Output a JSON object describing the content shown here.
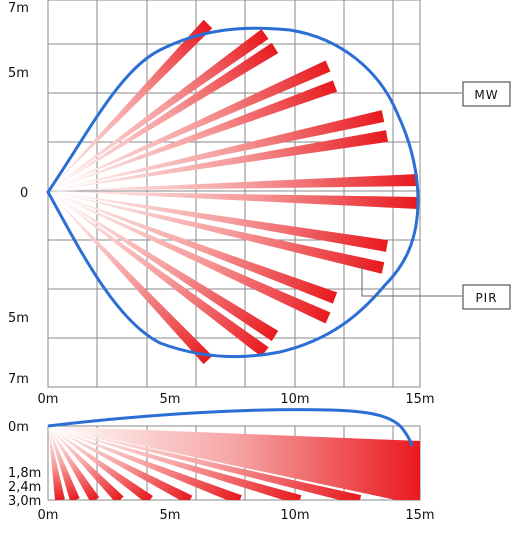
{
  "top_view": {
    "y_labels": [
      "7m",
      "5m",
      "0",
      "5m",
      "7m"
    ],
    "x_labels": [
      "0m",
      "5m",
      "10m",
      "15m"
    ],
    "callouts": {
      "mw": "MW",
      "pir": "PIR"
    }
  },
  "side_view": {
    "y_labels": [
      "0m",
      "1,8m",
      "2,4m",
      "3,0m"
    ],
    "x_labels": [
      "0m",
      "5m",
      "10m",
      "15m"
    ]
  },
  "colors": {
    "beam": "#e8191f",
    "coverage_outline": "#2b6fd6",
    "grid": "#8a8a8a"
  }
}
